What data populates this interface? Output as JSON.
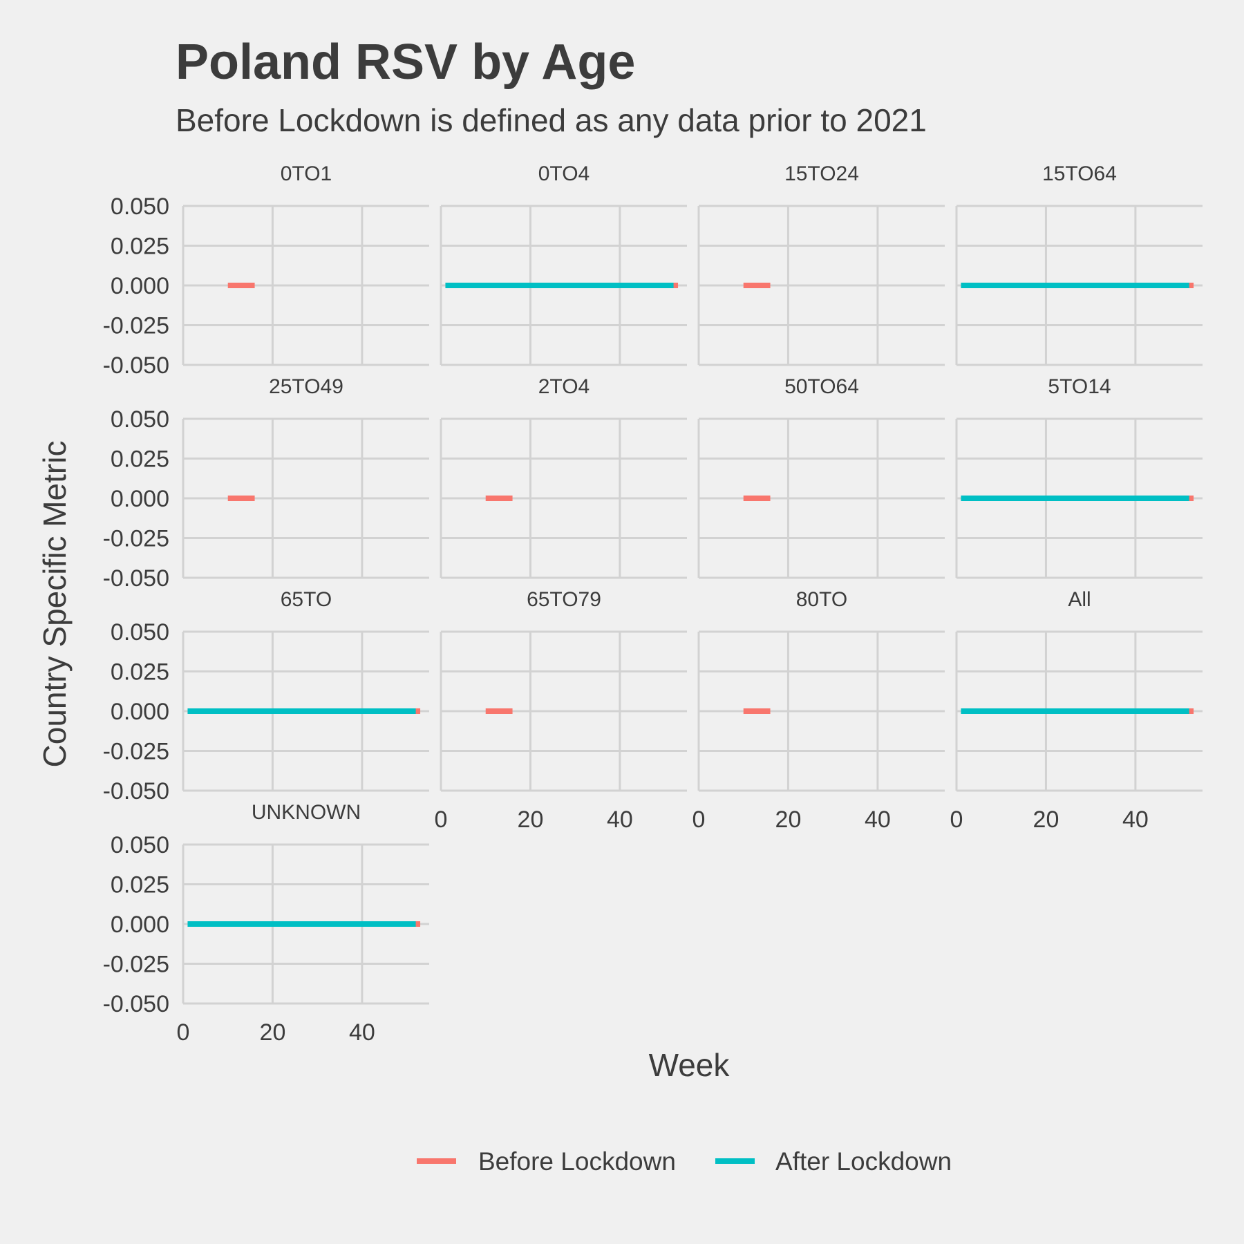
{
  "chart_data": {
    "type": "line",
    "title": "Poland RSV by Age",
    "subtitle": "Before Lockdown is defined as any data prior to 2021",
    "xlabel": "Week",
    "ylabel": "Country Specific Metric",
    "xlim": [
      0,
      55
    ],
    "ylim": [
      -0.05,
      0.05
    ],
    "x_ticks": [
      "0",
      "20",
      "40"
    ],
    "y_ticks": [
      "-0.050",
      "-0.025",
      "0.000",
      "0.025",
      "0.050"
    ],
    "grid": true,
    "legend_position": "bottom",
    "series_styles": [
      {
        "name": "Before Lockdown",
        "color": "#f8766d"
      },
      {
        "name": "After Lockdown",
        "color": "#00bfc4"
      }
    ],
    "panels": [
      {
        "label": "0TO1",
        "series": [
          {
            "name": "Before Lockdown",
            "x": [
              10,
              16
            ],
            "y": [
              0,
              0
            ]
          }
        ]
      },
      {
        "label": "0TO4",
        "series": [
          {
            "name": "Before Lockdown",
            "x": [
              1,
              53
            ],
            "y": [
              0,
              0
            ]
          },
          {
            "name": "After Lockdown",
            "x": [
              1,
              52
            ],
            "y": [
              0,
              0
            ]
          }
        ]
      },
      {
        "label": "15TO24",
        "series": [
          {
            "name": "Before Lockdown",
            "x": [
              10,
              16
            ],
            "y": [
              0,
              0
            ]
          }
        ]
      },
      {
        "label": "15TO64",
        "series": [
          {
            "name": "Before Lockdown",
            "x": [
              1,
              53
            ],
            "y": [
              0,
              0
            ]
          },
          {
            "name": "After Lockdown",
            "x": [
              1,
              52
            ],
            "y": [
              0,
              0
            ]
          }
        ]
      },
      {
        "label": "25TO49",
        "series": [
          {
            "name": "Before Lockdown",
            "x": [
              10,
              16
            ],
            "y": [
              0,
              0
            ]
          }
        ]
      },
      {
        "label": "2TO4",
        "series": [
          {
            "name": "Before Lockdown",
            "x": [
              10,
              16
            ],
            "y": [
              0,
              0
            ]
          }
        ]
      },
      {
        "label": "50TO64",
        "series": [
          {
            "name": "Before Lockdown",
            "x": [
              10,
              16
            ],
            "y": [
              0,
              0
            ]
          }
        ]
      },
      {
        "label": "5TO14",
        "series": [
          {
            "name": "Before Lockdown",
            "x": [
              1,
              53
            ],
            "y": [
              0,
              0
            ]
          },
          {
            "name": "After Lockdown",
            "x": [
              1,
              52
            ],
            "y": [
              0,
              0
            ]
          }
        ]
      },
      {
        "label": "65TO",
        "series": [
          {
            "name": "Before Lockdown",
            "x": [
              1,
              53
            ],
            "y": [
              0,
              0
            ]
          },
          {
            "name": "After Lockdown",
            "x": [
              1,
              52
            ],
            "y": [
              0,
              0
            ]
          }
        ]
      },
      {
        "label": "65TO79",
        "series": [
          {
            "name": "Before Lockdown",
            "x": [
              10,
              16
            ],
            "y": [
              0,
              0
            ]
          }
        ]
      },
      {
        "label": "80TO",
        "series": [
          {
            "name": "Before Lockdown",
            "x": [
              10,
              16
            ],
            "y": [
              0,
              0
            ]
          }
        ]
      },
      {
        "label": "All",
        "series": [
          {
            "name": "Before Lockdown",
            "x": [
              1,
              53
            ],
            "y": [
              0,
              0
            ]
          },
          {
            "name": "After Lockdown",
            "x": [
              1,
              52
            ],
            "y": [
              0,
              0
            ]
          }
        ]
      },
      {
        "label": "UNKNOWN",
        "series": [
          {
            "name": "Before Lockdown",
            "x": [
              1,
              53
            ],
            "y": [
              0,
              0
            ]
          },
          {
            "name": "After Lockdown",
            "x": [
              1,
              52
            ],
            "y": [
              0,
              0
            ]
          }
        ]
      }
    ]
  }
}
